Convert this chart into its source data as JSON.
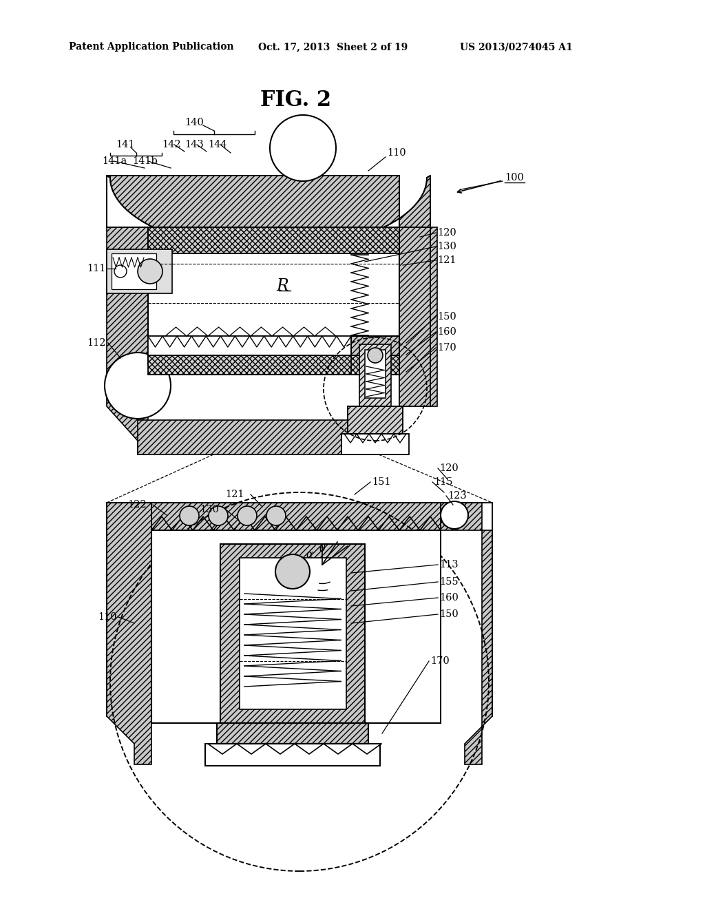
{
  "title": "FIG. 2",
  "header_left": "Patent Application Publication",
  "header_center": "Oct. 17, 2013  Sheet 2 of 19",
  "header_right": "US 2013/0274045 A1",
  "bg_color": "#ffffff",
  "line_color": "#000000"
}
